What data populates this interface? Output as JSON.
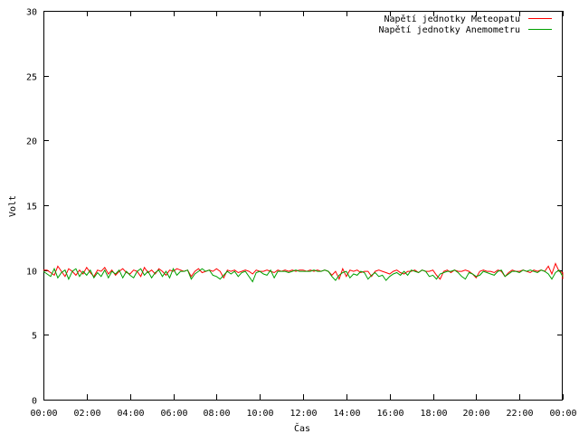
{
  "chart_data": {
    "type": "line",
    "xlabel": "Čas",
    "ylabel": "Volt",
    "ylim": [
      0,
      30
    ],
    "y_ticks": [
      0,
      5,
      10,
      15,
      20,
      25,
      30
    ],
    "x_range_hours": [
      0,
      24
    ],
    "x_ticks": [
      "00:00",
      "02:00",
      "04:00",
      "06:00",
      "08:00",
      "10:00",
      "12:00",
      "14:00",
      "16:00",
      "18:00",
      "20:00",
      "22:00",
      "00:00"
    ],
    "grid": false,
    "legend_position": "top-right",
    "sample_interval_minutes": 10,
    "series": [
      {
        "name": "Napětí jednotky Meteopatu",
        "color": "#ff0000",
        "values": [
          10.0,
          10.0,
          9.8,
          9.6,
          10.3,
          9.9,
          9.5,
          10.1,
          9.9,
          9.6,
          10.0,
          9.7,
          10.2,
          9.8,
          9.5,
          10.0,
          9.9,
          10.2,
          9.7,
          10.0,
          9.6,
          9.9,
          10.1,
          9.8,
          9.7,
          10.0,
          9.9,
          9.5,
          10.2,
          9.8,
          10.0,
          9.7,
          10.1,
          9.9,
          9.6,
          10.0,
          9.9,
          10.1,
          10.0,
          9.9,
          10.0,
          9.5,
          9.9,
          10.1,
          9.8,
          9.9,
          10.0,
          9.9,
          10.1,
          9.9,
          9.4,
          10.0,
          9.9,
          10.0,
          9.8,
          9.9,
          10.0,
          9.9,
          9.7,
          10.0,
          9.9,
          9.9,
          10.0,
          9.9,
          9.8,
          10.0,
          9.9,
          10.0,
          9.9,
          10.0,
          9.9,
          10.0,
          10.0,
          9.9,
          10.0,
          9.9,
          10.0,
          9.9,
          10.0,
          9.9,
          9.6,
          9.9,
          9.3,
          10.1,
          9.5,
          10.0,
          9.9,
          10.0,
          9.8,
          9.9,
          9.9,
          9.5,
          9.9,
          10.0,
          9.9,
          9.8,
          9.7,
          9.9,
          10.0,
          9.8,
          9.7,
          9.9,
          9.9,
          10.0,
          9.8,
          10.0,
          9.9,
          9.9,
          10.0,
          9.6,
          9.3,
          9.9,
          10.0,
          9.8,
          10.0,
          9.9,
          9.9,
          10.0,
          9.9,
          9.7,
          9.4,
          9.9,
          10.0,
          9.9,
          9.9,
          9.8,
          10.0,
          9.9,
          9.5,
          9.8,
          10.0,
          9.9,
          9.9,
          10.0,
          9.9,
          9.8,
          10.0,
          9.9,
          10.0,
          9.9,
          10.3,
          9.7,
          10.5,
          9.9,
          9.8,
          9.3
        ]
      },
      {
        "name": "Napětí jednotky Anemometru",
        "color": "#00a000",
        "values": [
          9.9,
          9.7,
          9.5,
          10.1,
          9.4,
          9.8,
          10.0,
          9.3,
          9.9,
          10.1,
          9.5,
          9.9,
          9.6,
          10.0,
          9.4,
          9.8,
          9.5,
          10.0,
          9.4,
          9.9,
          9.7,
          10.0,
          9.4,
          9.9,
          9.6,
          9.4,
          9.9,
          10.1,
          9.6,
          9.9,
          9.4,
          9.8,
          10.0,
          9.5,
          9.9,
          9.4,
          10.1,
          9.6,
          9.9,
          9.9,
          10.0,
          9.3,
          9.7,
          9.9,
          10.1,
          9.9,
          10.0,
          9.6,
          9.5,
          9.3,
          9.6,
          9.9,
          9.7,
          9.9,
          9.5,
          9.8,
          9.9,
          9.5,
          9.1,
          9.8,
          9.9,
          9.7,
          9.6,
          10.0,
          9.4,
          9.9,
          9.9,
          9.9,
          9.8,
          9.9,
          10.0,
          9.9,
          9.9,
          9.9,
          9.9,
          10.0,
          9.9,
          9.9,
          10.0,
          9.9,
          9.5,
          9.2,
          9.6,
          9.8,
          9.9,
          9.4,
          9.7,
          9.6,
          9.9,
          9.8,
          9.3,
          9.6,
          9.8,
          9.5,
          9.6,
          9.2,
          9.5,
          9.7,
          9.8,
          9.6,
          9.9,
          9.6,
          10.0,
          9.9,
          9.8,
          10.0,
          9.9,
          9.5,
          9.6,
          9.3,
          9.7,
          9.8,
          9.9,
          9.9,
          10.0,
          9.8,
          9.5,
          9.3,
          9.8,
          9.7,
          9.5,
          9.6,
          9.9,
          9.8,
          9.7,
          9.6,
          9.9,
          10.0,
          9.5,
          9.7,
          9.9,
          9.9,
          9.8,
          10.0,
          9.9,
          10.0,
          9.9,
          9.8,
          10.0,
          9.9,
          9.7,
          9.3,
          9.8,
          10.0,
          9.5
        ]
      }
    ]
  }
}
